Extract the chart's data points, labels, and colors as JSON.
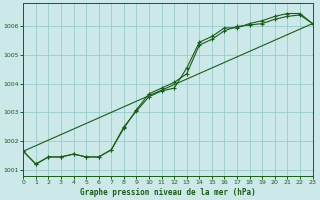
{
  "background_color": "#cce8e8",
  "grid_color": "#99cccc",
  "line_color": "#1a5c1a",
  "title": "Graphe pression niveau de la mer (hPa)",
  "xlim": [
    0,
    23
  ],
  "ylim": [
    1000.8,
    1006.8
  ],
  "yticks": [
    1001,
    1002,
    1003,
    1004,
    1005,
    1006
  ],
  "xticks": [
    0,
    1,
    2,
    3,
    4,
    5,
    6,
    7,
    8,
    9,
    10,
    11,
    12,
    13,
    14,
    15,
    16,
    17,
    18,
    19,
    20,
    21,
    22,
    23
  ],
  "line_straight": {
    "x": [
      0,
      23
    ],
    "y": [
      1001.65,
      1006.1
    ]
  },
  "line_marked1": {
    "x": [
      0,
      1,
      2,
      3,
      4,
      5,
      6,
      7,
      8,
      9,
      10,
      11,
      12,
      13,
      14,
      15,
      16,
      17,
      18,
      19,
      20,
      21,
      22,
      23
    ],
    "y": [
      1001.65,
      1001.2,
      1001.45,
      1001.45,
      1001.55,
      1001.45,
      1001.45,
      1001.7,
      1002.5,
      1003.05,
      1003.55,
      1003.75,
      1003.85,
      1004.55,
      1005.45,
      1005.65,
      1005.95,
      1005.95,
      1006.1,
      1006.2,
      1006.35,
      1006.45,
      1006.45,
      1006.1
    ]
  },
  "line_marked2": {
    "x": [
      0,
      1,
      2,
      3,
      4,
      5,
      6,
      7,
      8,
      9,
      10,
      11,
      12,
      13,
      14,
      15,
      16,
      17,
      18,
      19,
      20,
      21,
      22,
      23
    ],
    "y": [
      1001.65,
      1001.2,
      1001.45,
      1001.45,
      1001.55,
      1001.45,
      1001.45,
      1001.7,
      1002.45,
      1003.1,
      1003.65,
      1003.85,
      1004.05,
      1004.35,
      1005.35,
      1005.55,
      1005.85,
      1006.0,
      1006.05,
      1006.1,
      1006.25,
      1006.35,
      1006.4,
      1006.1
    ]
  }
}
